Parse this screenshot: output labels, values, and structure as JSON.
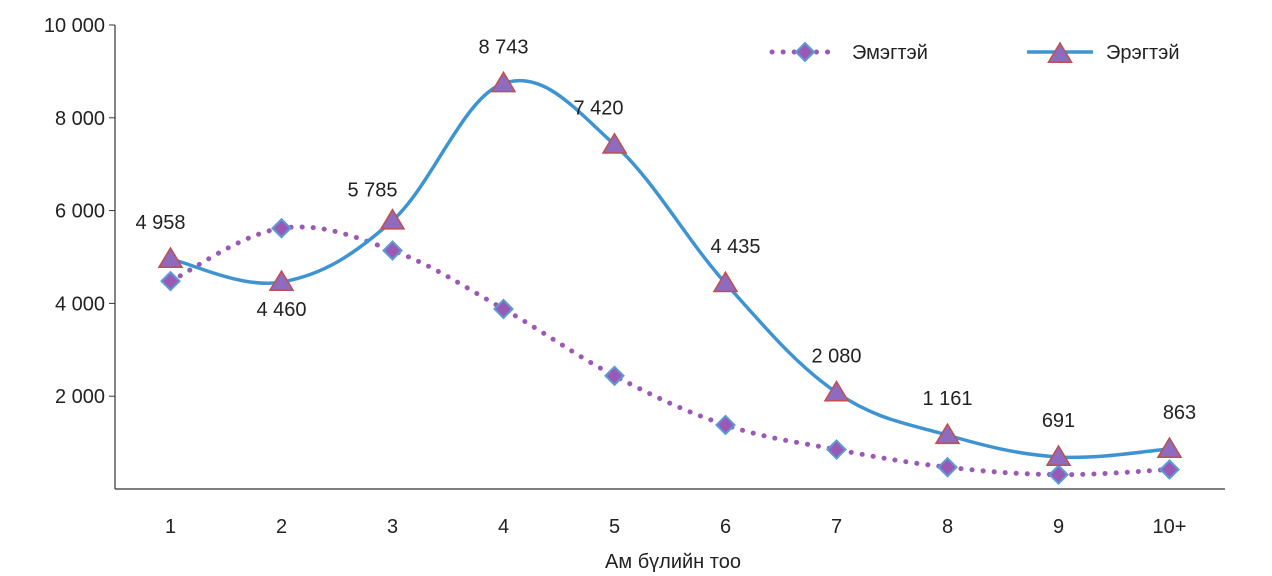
{
  "chart_data": {
    "type": "line",
    "title": "",
    "xlabel": "Ам бүлийн тоо",
    "ylabel": "",
    "categories": [
      "1",
      "2",
      "3",
      "4",
      "5",
      "6",
      "7",
      "8",
      "9",
      "10+"
    ],
    "ylim": [
      0,
      10000
    ],
    "yticks": [
      2000,
      4000,
      6000,
      8000,
      10000
    ],
    "ytick_labels": [
      "2 000",
      "4 000",
      "6 000",
      "8 000",
      "10 000"
    ],
    "grid": false,
    "legend_position": "top-right",
    "series": [
      {
        "name": "Эмэгтэй",
        "values": [
          4480,
          5620,
          5140,
          3880,
          2440,
          1380,
          850,
          470,
          310,
          420
        ],
        "line_color": "#9b59b6",
        "line_style": "dotted",
        "marker": "diamond",
        "marker_fill": "#9b59b6",
        "marker_stroke": "#5b9bd5",
        "data_labels": []
      },
      {
        "name": "Эрэгтэй",
        "values": [
          4958,
          4460,
          5785,
          8743,
          7420,
          4435,
          2080,
          1161,
          691,
          863
        ],
        "line_color": "#3d94d1",
        "line_style": "solid",
        "marker": "triangle",
        "marker_fill": "#8e6bbf",
        "marker_stroke": "#c0504d",
        "data_labels": [
          "4 958",
          "4 460",
          "5 785",
          "8 743",
          "7 420",
          "4 435",
          "2 080",
          "1 161",
          "691",
          "863"
        ]
      }
    ]
  }
}
